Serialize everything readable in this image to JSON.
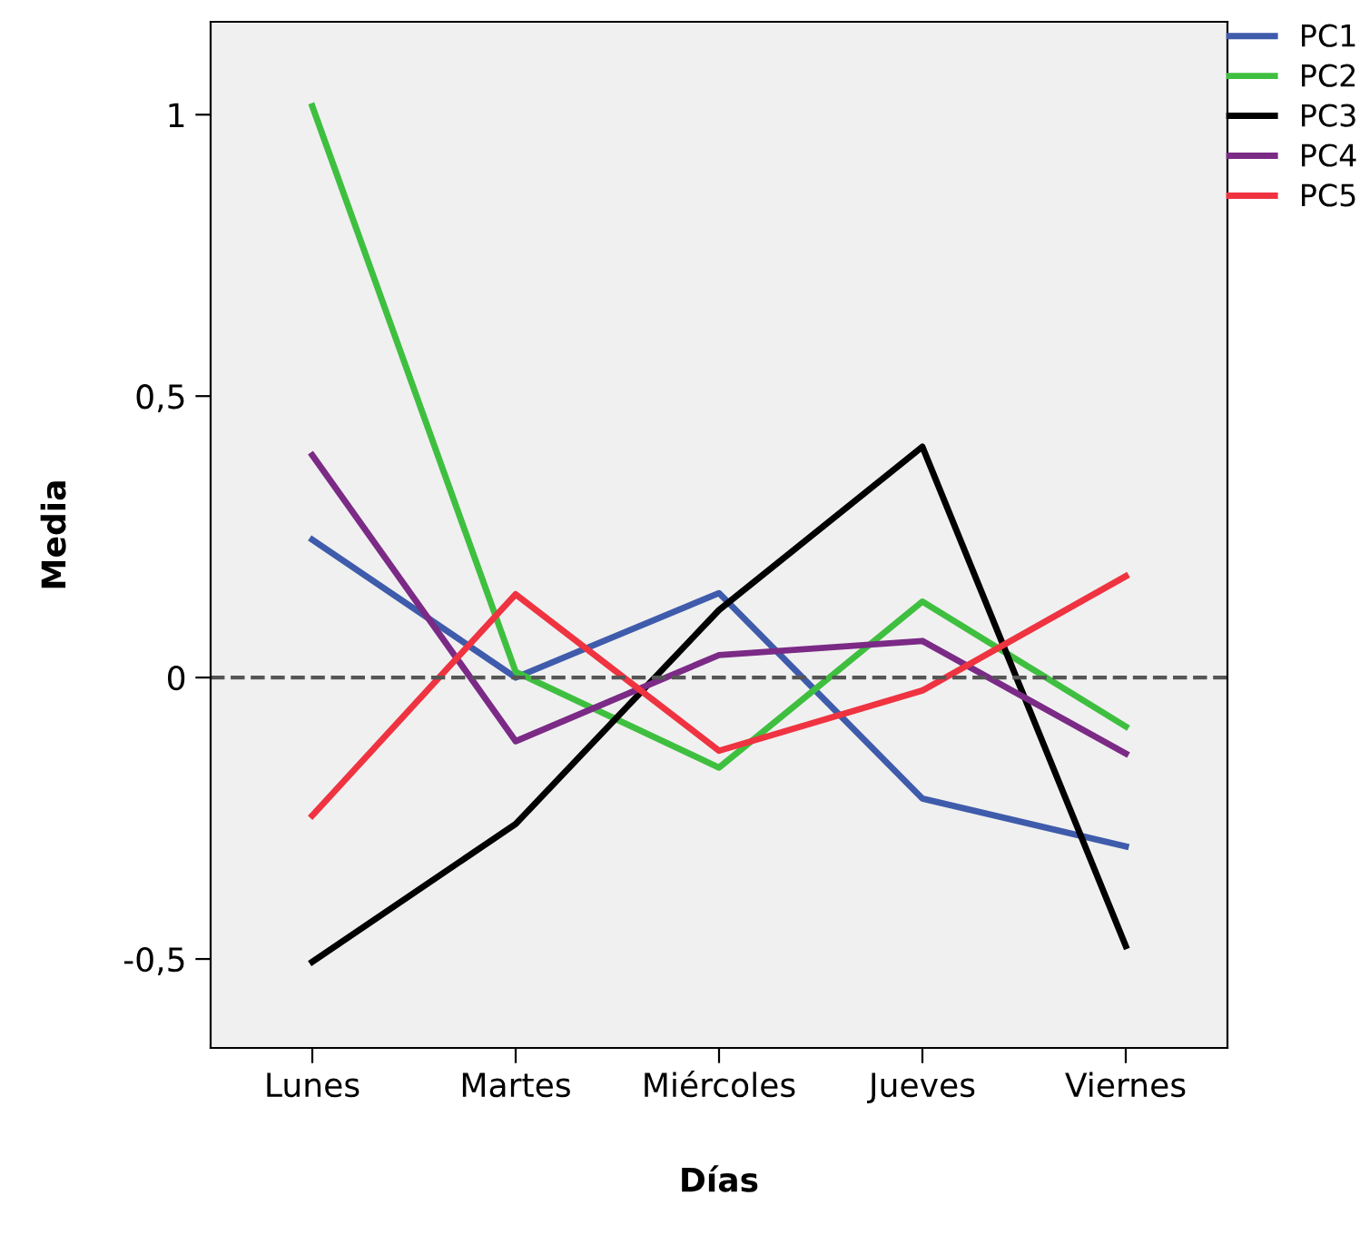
{
  "chart_data": {
    "type": "line",
    "xlabel": "Días",
    "ylabel": "Media",
    "categories": [
      "Lunes",
      "Martes",
      "Miércoles",
      "Jueves",
      "Viernes"
    ],
    "series": [
      {
        "name": "PC1",
        "color": "#3f5bab",
        "values": [
          0.245,
          0.0,
          0.15,
          -0.215,
          -0.3
        ]
      },
      {
        "name": "PC2",
        "color": "#3fbf3f",
        "values": [
          1.015,
          0.01,
          -0.16,
          0.135,
          -0.087
        ]
      },
      {
        "name": "PC3",
        "color": "#000000",
        "values": [
          -0.505,
          -0.26,
          0.12,
          0.41,
          -0.477
        ]
      },
      {
        "name": "PC4",
        "color": "#7b2a86",
        "values": [
          0.395,
          -0.113,
          0.04,
          0.065,
          -0.135
        ]
      },
      {
        "name": "PC5",
        "color": "#ef3340",
        "values": [
          -0.245,
          0.148,
          -0.13,
          -0.023,
          0.18
        ]
      }
    ],
    "ylim": [
      -0.658,
      1.165
    ],
    "yticks": [
      {
        "value": -0.5,
        "label": "-0,5"
      },
      0,
      {
        "value": 0.5,
        "label": "0,5"
      },
      1
    ],
    "ref_lines": [
      {
        "axis": "y",
        "value": 0,
        "color": "#555555",
        "line_style": "dashed"
      }
    ],
    "grid": false,
    "legend": "top right",
    "marker": "none",
    "line_style": "solid"
  }
}
